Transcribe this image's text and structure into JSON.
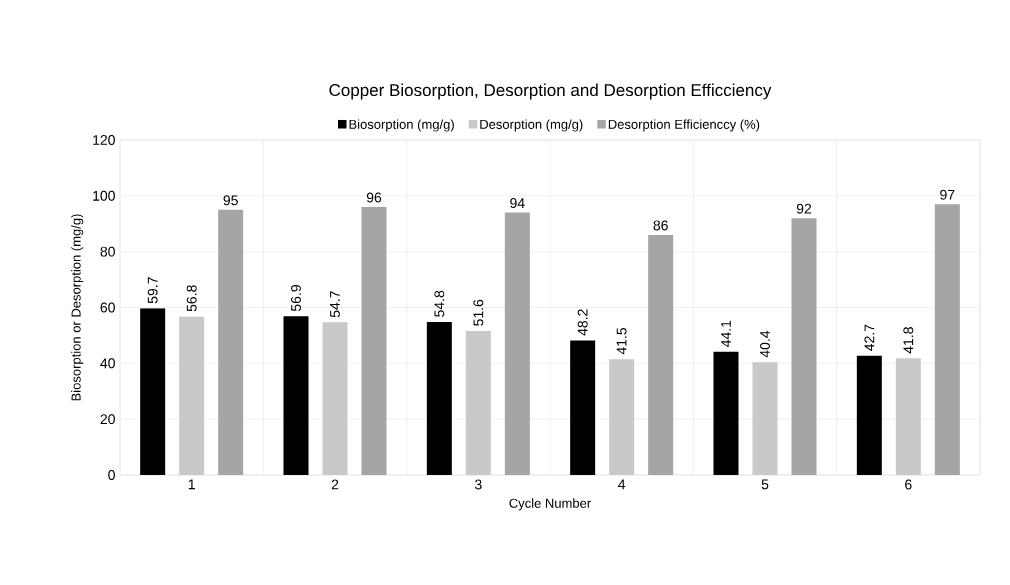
{
  "chart_data": {
    "type": "bar",
    "title": "Copper Biosorption, Desorption and Desorption Efficciency",
    "xlabel": "Cycle Number",
    "ylabel": "Biosorption  or  Desorption (mg/g)",
    "categories": [
      "1",
      "2",
      "3",
      "4",
      "5",
      "6"
    ],
    "series": [
      {
        "name": "Biosorption (mg/g)",
        "color": "#000000",
        "values": [
          59.7,
          56.9,
          54.8,
          48.2,
          44.1,
          42.7
        ]
      },
      {
        "name": "Desorption (mg/g)",
        "color": "#c9c9c9",
        "values": [
          56.8,
          54.7,
          51.6,
          41.5,
          40.4,
          41.8
        ]
      },
      {
        "name": "Desorption Efficienccy (%)",
        "color": "#a5a5a5",
        "values": [
          95,
          96,
          94,
          86,
          92,
          97
        ]
      }
    ],
    "ylim": [
      0,
      120
    ],
    "yticks": [
      0,
      20,
      40,
      60,
      80,
      100,
      120
    ],
    "grid": true,
    "legend": "top",
    "data_labels": true
  }
}
